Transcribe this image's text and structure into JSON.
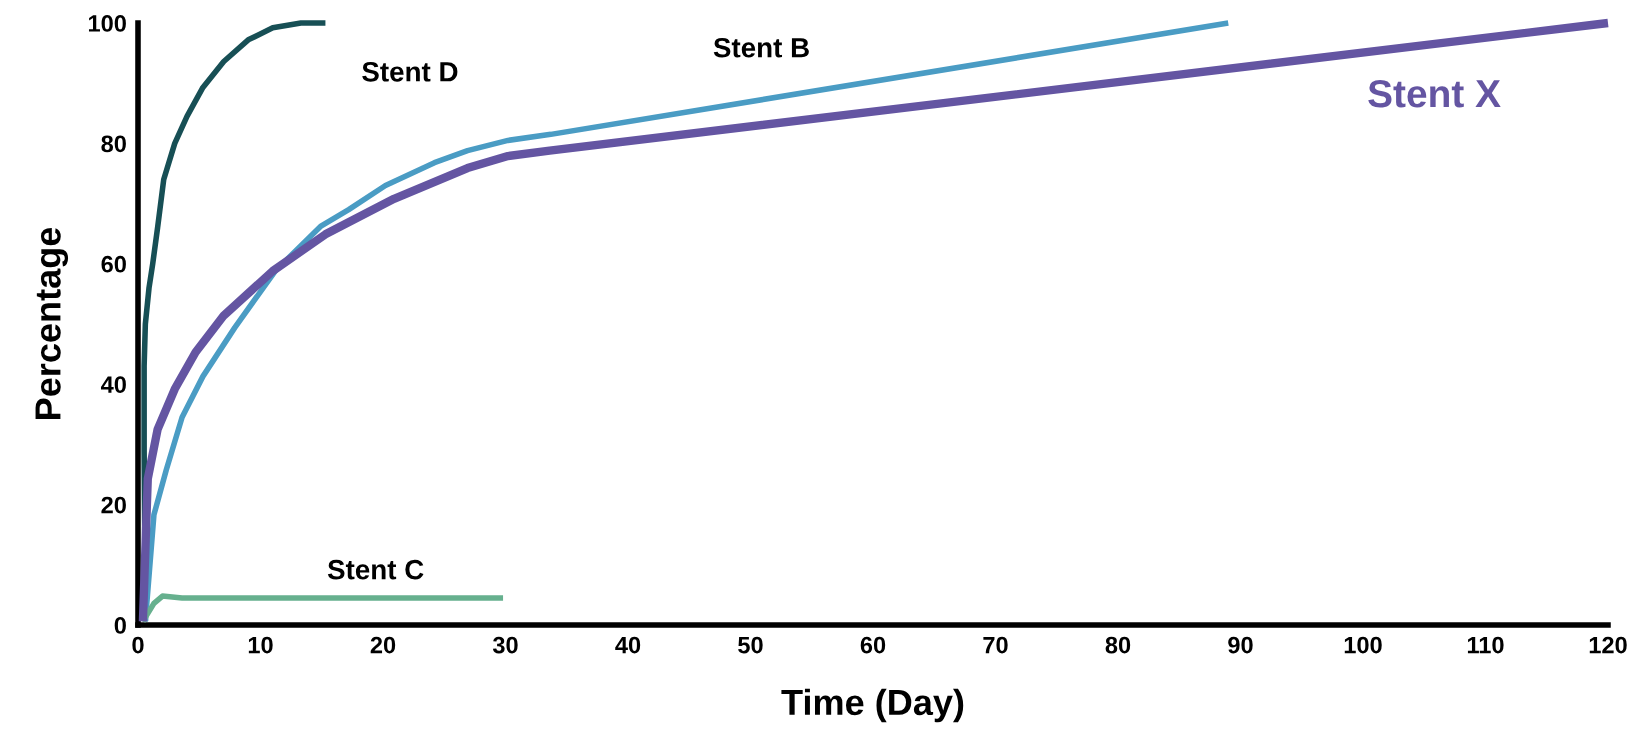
{
  "chart_data": {
    "type": "line",
    "xlabel": "Time (Day)",
    "ylabel": "Percentage",
    "xlim": [
      0,
      120
    ],
    "ylim": [
      0,
      100
    ],
    "xticks": [
      0,
      10,
      20,
      30,
      40,
      50,
      60,
      70,
      80,
      90,
      100,
      110,
      120
    ],
    "yticks": [
      0,
      20,
      40,
      60,
      80,
      100
    ],
    "grid": false,
    "legend": false,
    "marker": "none",
    "line_style": "solid",
    "series": [
      {
        "name": "Stent D",
        "color": "#174f55",
        "x": [
          0.6,
          0.5,
          0.5,
          0.6,
          0.9,
          1.2,
          1.6,
          2.1,
          3.0,
          4.0,
          5.3,
          7.0,
          9.0,
          11.0,
          13.3,
          15.3
        ],
        "values": [
          0.6,
          29,
          43,
          50,
          56,
          60,
          66,
          74,
          80,
          84.5,
          89.3,
          93.6,
          97.2,
          99.2,
          100,
          100
        ]
      },
      {
        "name": "Stent B",
        "color": "#4a9cc4",
        "x": [
          0.6,
          1.3,
          2.3,
          3.6,
          5.3,
          7.9,
          11.2,
          14.9,
          17.2,
          20.2,
          24.2,
          26.9,
          30.2,
          33.7,
          89
        ],
        "values": [
          0.6,
          18.3,
          25.7,
          34.5,
          41.3,
          49.4,
          58.8,
          66.2,
          69,
          73,
          76.8,
          78.8,
          80.5,
          81.5,
          100
        ]
      },
      {
        "name": "Stent X",
        "color": "#6455a2",
        "x": [
          0.4,
          0.8,
          1.6,
          3.0,
          4.7,
          7.0,
          11.0,
          15.3,
          20.9,
          26.9,
          30.2,
          33.6,
          120
        ],
        "values": [
          0.6,
          24.3,
          32.5,
          39.2,
          45.3,
          51.4,
          58.8,
          64.9,
          70.8,
          75.9,
          77.9,
          78.8,
          100
        ]
      },
      {
        "name": "Stent C",
        "color": "#66b08e",
        "x": [
          0.4,
          1.3,
          2.0,
          3.6,
          29.8
        ],
        "values": [
          0.6,
          3.6,
          4.8,
          4.5,
          4.5
        ]
      }
    ]
  }
}
